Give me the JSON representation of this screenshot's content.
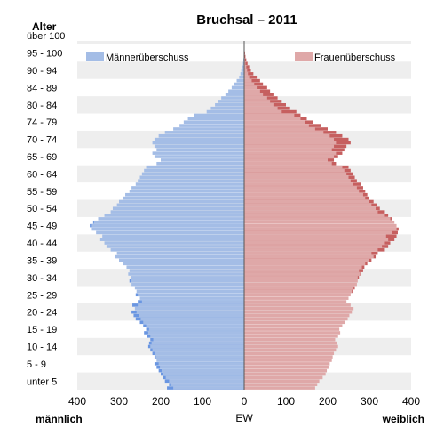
{
  "chart_data": {
    "type": "bar",
    "title": "Bruchsal – 2011",
    "y_axis_title": "Alter",
    "x_axis_title": "EW",
    "left_side_label": "männlich",
    "right_side_label": "weiblich",
    "xlim": [
      -400,
      400
    ],
    "x_ticks": [
      -400,
      -300,
      -200,
      -100,
      0,
      100,
      200,
      300,
      400
    ],
    "x_tick_labels": [
      "400",
      "300",
      "200",
      "100",
      "0",
      "100",
      "200",
      "300",
      "400"
    ],
    "age_group_labels": [
      "unter 5",
      "5 - 9",
      "10 - 14",
      "15 - 19",
      "20 - 24",
      "25 - 29",
      "30 - 34",
      "35 - 39",
      "40 - 44",
      "45 - 49",
      "50 - 54",
      "55 - 59",
      "60 - 64",
      "65 - 69",
      "70 - 74",
      "74 - 79",
      "80 - 84",
      "84 - 89",
      "90 - 94",
      "95 - 100",
      "über 100"
    ],
    "legend": [
      "Männerüberschuss",
      "Frauenüberschuss"
    ],
    "legend_position": "top",
    "grid": "alternating horizontal bands",
    "ages": [
      0,
      1,
      2,
      3,
      4,
      5,
      6,
      7,
      8,
      9,
      10,
      11,
      12,
      13,
      14,
      15,
      16,
      17,
      18,
      19,
      20,
      21,
      22,
      23,
      24,
      25,
      26,
      27,
      28,
      29,
      30,
      31,
      32,
      33,
      34,
      35,
      36,
      37,
      38,
      39,
      40,
      41,
      42,
      43,
      44,
      45,
      46,
      47,
      48,
      49,
      50,
      51,
      52,
      53,
      54,
      55,
      56,
      57,
      58,
      59,
      60,
      61,
      62,
      63,
      64,
      65,
      66,
      67,
      68,
      69,
      70,
      71,
      72,
      73,
      74,
      75,
      76,
      77,
      78,
      79,
      80,
      81,
      82,
      83,
      84,
      85,
      86,
      87,
      88,
      89,
      90,
      91,
      92,
      93,
      94,
      95,
      96,
      97,
      98,
      99,
      100
    ],
    "series": [
      {
        "name": "männlich",
        "values": [
          185,
          180,
          190,
          195,
          200,
          205,
          210,
          215,
          210,
          215,
          220,
          225,
          230,
          228,
          225,
          232,
          240,
          235,
          242,
          250,
          260,
          265,
          270,
          262,
          268,
          255,
          250,
          260,
          258,
          262,
          270,
          275,
          272,
          278,
          275,
          282,
          290,
          300,
          310,
          305,
          320,
          330,
          335,
          345,
          340,
          355,
          365,
          370,
          362,
          350,
          335,
          320,
          315,
          305,
          300,
          290,
          285,
          275,
          270,
          260,
          255,
          250,
          245,
          240,
          235,
          210,
          200,
          215,
          220,
          210,
          215,
          220,
          215,
          205,
          190,
          170,
          155,
          145,
          135,
          120,
          90,
          80,
          70,
          62,
          55,
          45,
          38,
          30,
          24,
          18,
          12,
          9,
          7,
          5,
          3,
          2,
          1,
          1,
          0,
          0,
          0
        ]
      },
      {
        "name": "weiblich",
        "values": [
          170,
          175,
          180,
          188,
          195,
          198,
          202,
          205,
          210,
          212,
          215,
          220,
          225,
          222,
          218,
          225,
          230,
          228,
          235,
          242,
          248,
          252,
          258,
          262,
          255,
          245,
          250,
          255,
          260,
          265,
          270,
          272,
          275,
          280,
          285,
          288,
          295,
          305,
          315,
          320,
          335,
          345,
          350,
          360,
          365,
          368,
          370,
          365,
          360,
          355,
          345,
          335,
          325,
          318,
          310,
          300,
          295,
          290,
          285,
          280,
          270,
          265,
          260,
          255,
          250,
          220,
          215,
          225,
          235,
          240,
          245,
          255,
          250,
          235,
          220,
          200,
          185,
          165,
          150,
          135,
          125,
          110,
          100,
          90,
          80,
          70,
          62,
          55,
          45,
          38,
          30,
          22,
          16,
          12,
          8,
          5,
          3,
          2,
          1,
          1,
          0
        ]
      }
    ],
    "colors": {
      "male_bar": "#a4bde6",
      "male_surplus": "#6a96e1",
      "female_bar": "#dfa8a8",
      "female_surplus": "#c65f5f",
      "band": "#eeeeee"
    }
  }
}
